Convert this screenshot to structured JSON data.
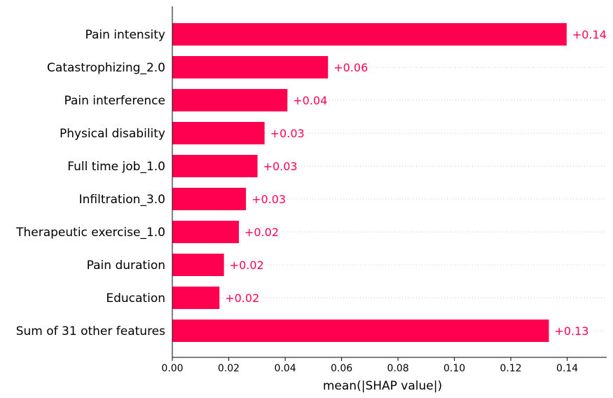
{
  "chart_data": {
    "type": "bar",
    "orientation": "horizontal",
    "title": "",
    "xlabel": "mean(|SHAP value|)",
    "ylabel": "",
    "categories": [
      "Pain intensity",
      "Catastrophizing_2.0",
      "Pain interference",
      "Physical disability",
      "Full time job_1.0",
      "Infiltration_3.0",
      "Therapeutic exercise_1.0",
      "Pain duration",
      "Education",
      "Sum of 31 other features"
    ],
    "values": [
      0.1398,
      0.0552,
      0.0408,
      0.0327,
      0.0302,
      0.0261,
      0.0236,
      0.0183,
      0.0167,
      0.1335
    ],
    "value_labels": [
      "+0.14",
      "+0.06",
      "+0.04",
      "+0.03",
      "+0.03",
      "+0.03",
      "+0.02",
      "+0.02",
      "+0.02",
      "+0.13"
    ],
    "xlim": [
      0,
      0.154
    ],
    "xticks": [
      0.0,
      0.02,
      0.04,
      0.06,
      0.08,
      0.1,
      0.12,
      0.14
    ],
    "xtick_labels": [
      "0.00",
      "0.02",
      "0.04",
      "0.06",
      "0.08",
      "0.10",
      "0.12",
      "0.14"
    ],
    "grid": "dotted row guides",
    "legend": "none",
    "colors": {
      "bar": "#ff0051",
      "label": "#ff0051",
      "axis": "#000000",
      "guide": "#cccccc"
    }
  }
}
